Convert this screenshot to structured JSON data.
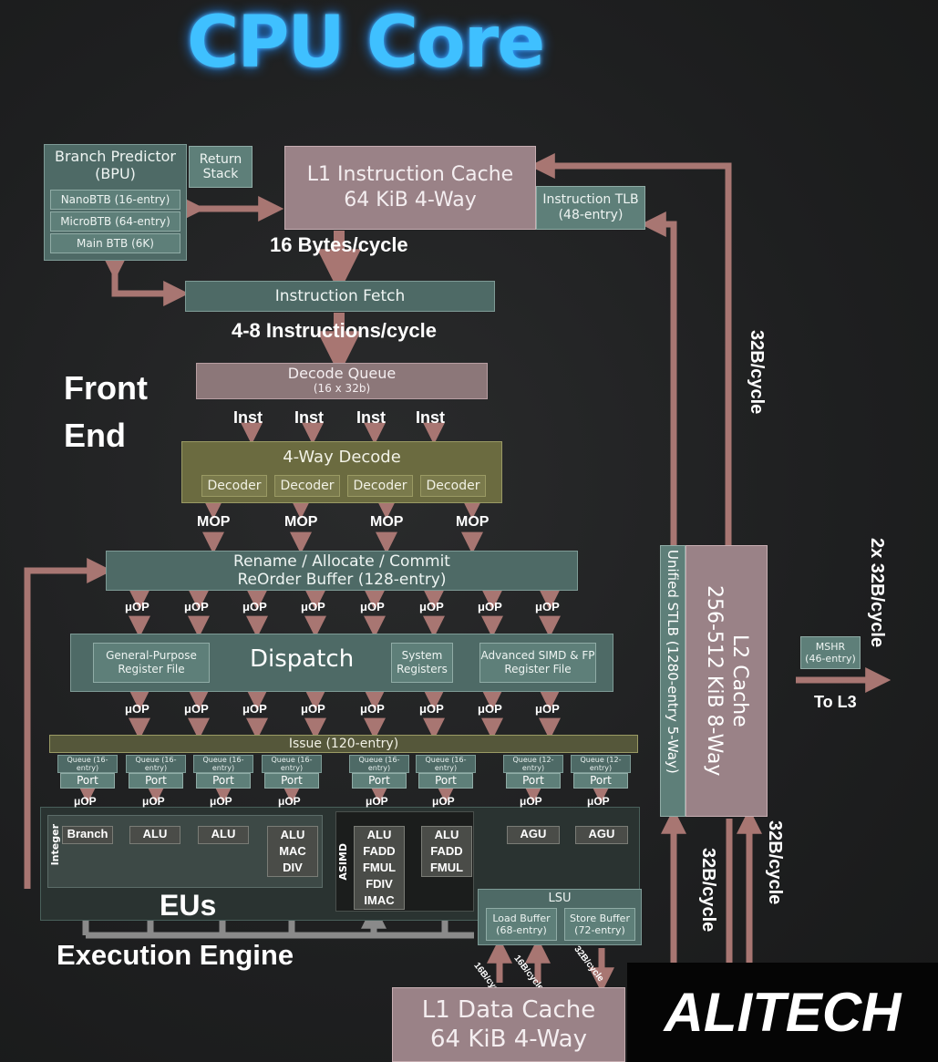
{
  "title": "CPU Core",
  "bpu": {
    "title": "Branch Predictor (BPU)",
    "rows": [
      "NanoBTB (16-entry)",
      "MicroBTB (64-entry)",
      "Main BTB (6K)"
    ],
    "return_stack": "Return Stack"
  },
  "l1i": {
    "line1": "L1 Instruction Cache",
    "line2": "64 KiB 4-Way"
  },
  "itlb": {
    "line1": "Instruction TLB",
    "line2": "(48-entry)"
  },
  "labels": {
    "bytes_cycle": "16 Bytes/cycle",
    "instr_cycle": "4-8 Instructions/cycle",
    "front_end_1": "Front",
    "front_end_2": "End",
    "eus": "EUs",
    "exec_engine": "Execution Engine",
    "to_l3": "To L3",
    "l2_bw_top": "32B/cycle",
    "l2_bw_right": "2x 32B/cycle",
    "l2_bw_low1": "32B/cycle",
    "l2_bw_low2": "32B/cycle",
    "ld_bw1": "16B/cycle",
    "ld_bw2": "16B/cycle",
    "st_bw": "32B/cycle"
  },
  "fetch": "Instruction Fetch",
  "decode_queue": {
    "line1": "Decode Queue",
    "line2": "(16 x 32b)"
  },
  "inst_label": "Inst",
  "decode": {
    "title": "4-Way Decode",
    "decoders": [
      "Decoder",
      "Decoder",
      "Decoder",
      "Decoder"
    ]
  },
  "mop_label": "MOP",
  "rename": {
    "line1": "Rename / Allocate / Commit",
    "line2": "ReOrder Buffer (128-entry)"
  },
  "uop_label": "μOP",
  "dispatch": {
    "title": "Dispatch",
    "gprf": "General-Purpose Register File",
    "sysreg": "System Registers",
    "simd_rf": "Advanced SIMD & FP Register File"
  },
  "issue": "Issue (120-entry)",
  "queues": [
    {
      "q": "Queue (16-entry)",
      "p": "Port"
    },
    {
      "q": "Queue (16-entry)",
      "p": "Port"
    },
    {
      "q": "Queue (16-entry)",
      "p": "Port"
    },
    {
      "q": "Queue (16-entry)",
      "p": "Port"
    },
    {
      "q": "Queue (16-entry)",
      "p": "Port"
    },
    {
      "q": "Queue (16-entry)",
      "p": "Port"
    },
    {
      "q": "Queue (12-entry)",
      "p": "Port"
    },
    {
      "q": "Queue (12-entry)",
      "p": "Port"
    }
  ],
  "integer_label": "Integer",
  "asimd_label": "ASIMD",
  "units": {
    "branch": "Branch",
    "alu1": "ALU",
    "alu2": "ALU",
    "alu_mac_div": [
      "ALU",
      "MAC",
      "DIV"
    ],
    "simd1": [
      "ALU",
      "FADD",
      "FMUL",
      "FDIV",
      "IMAC"
    ],
    "simd2": [
      "ALU",
      "FADD",
      "FMUL"
    ],
    "agu1": "AGU",
    "agu2": "AGU"
  },
  "lsu": {
    "title": "LSU",
    "load": "Load Buffer (68-entry)",
    "store": "Store Buffer (72-entry)"
  },
  "stlb": "Unified STLB (1280-entry 5-Way)",
  "l2": {
    "line1": "L2 Cache",
    "line2": "256-512 KiB 8-Way"
  },
  "mshr": {
    "line1": "MSHR",
    "line2": "(46-entry)"
  },
  "l1d": {
    "line1": "L1 Data Cache",
    "line2": "64 KiB 4-Way"
  },
  "logo": "ALITECH",
  "colors": {
    "arrow": "#a87672",
    "title": "#3fc0ff",
    "gray_arrow": "#8a8a8a"
  }
}
